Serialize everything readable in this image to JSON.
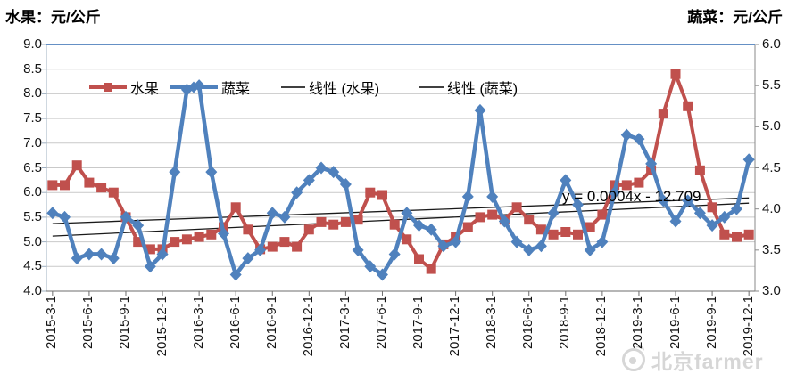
{
  "titles": {
    "left": "水果：元/公斤",
    "right": "蔬菜：元/公斤"
  },
  "legend": {
    "items": [
      {
        "label": "水果",
        "marker": "square-on-line",
        "color": "#C0504D"
      },
      {
        "label": "蔬菜",
        "marker": "diamond-on-line",
        "color": "#4F81BD"
      },
      {
        "label": "线性 (水果)",
        "marker": "line",
        "color": "#000000"
      },
      {
        "label": "线性 (蔬菜)",
        "marker": "line",
        "color": "#000000"
      }
    ]
  },
  "annotation": {
    "text": "y = 0.0004x - 12.709"
  },
  "watermark": {
    "icon": "weibo-eye-icon",
    "text": "北京farmer"
  },
  "chart_data": {
    "type": "line",
    "title": "",
    "xlabel": "",
    "left_axis": {
      "title": "水果：元/公斤",
      "min": 4.0,
      "max": 9.0,
      "step": 0.5,
      "labels": [
        "9.0",
        "8.5",
        "8.0",
        "7.5",
        "7.0",
        "6.5",
        "6.0",
        "5.5",
        "5.0",
        "4.5",
        "4.0"
      ]
    },
    "right_axis": {
      "title": "蔬菜：元/公斤",
      "min": 3.0,
      "max": 6.0,
      "step": 0.5,
      "labels": [
        "6.0",
        "5.5",
        "5.0",
        "4.5",
        "4.0",
        "3.5",
        "3.0"
      ]
    },
    "grid": true,
    "legend_position": "top-center",
    "x": [
      "2015-3-1",
      "2015-4-1",
      "2015-5-1",
      "2015-6-1",
      "2015-7-1",
      "2015-8-1",
      "2015-9-1",
      "2015-10-1",
      "2015-11-1",
      "2015-12-1",
      "2016-1-1",
      "2016-2-1",
      "2016-3-1",
      "2016-4-1",
      "2016-5-1",
      "2016-6-1",
      "2016-7-1",
      "2016-8-1",
      "2016-9-1",
      "2016-10-1",
      "2016-11-1",
      "2016-12-1",
      "2017-1-1",
      "2017-2-1",
      "2017-3-1",
      "2017-4-1",
      "2017-5-1",
      "2017-6-1",
      "2017-7-1",
      "2017-8-1",
      "2017-9-1",
      "2017-10-1",
      "2017-11-1",
      "2017-12-1",
      "2018-1-1",
      "2018-2-1",
      "2018-3-1",
      "2018-4-1",
      "2018-5-1",
      "2018-6-1",
      "2018-7-1",
      "2018-8-1",
      "2018-9-1",
      "2018-10-1",
      "2018-11-1",
      "2018-12-1",
      "2019-1-1",
      "2019-2-1",
      "2019-3-1",
      "2019-4-1",
      "2019-5-1",
      "2019-6-1",
      "2019-7-1",
      "2019-8-1",
      "2019-9-1",
      "2019-10-1",
      "2019-11-1",
      "2019-12-1"
    ],
    "x_tick_labels": [
      "2015-3-1",
      "2015-6-1",
      "2015-9-1",
      "2015-12-1",
      "2016-3-1",
      "2016-6-1",
      "2016-9-1",
      "2016-12-1",
      "2017-3-1",
      "2017-6-1",
      "2017-9-1",
      "2017-12-1",
      "2018-3-1",
      "2018-6-1",
      "2018-9-1",
      "2018-12-1",
      "2019-3-1",
      "2019-6-1",
      "2019-9-1",
      "2019-12-1"
    ],
    "series": [
      {
        "name": "水果",
        "axis": "left",
        "color": "#C0504D",
        "marker": "square",
        "values": [
          6.15,
          6.15,
          6.55,
          6.2,
          6.1,
          6.0,
          5.5,
          5.0,
          4.85,
          4.85,
          5.0,
          5.05,
          5.1,
          5.15,
          5.3,
          5.7,
          5.25,
          4.85,
          4.9,
          5.0,
          4.9,
          5.25,
          5.4,
          5.35,
          5.4,
          5.45,
          6.0,
          5.95,
          5.35,
          5.05,
          4.65,
          4.45,
          4.95,
          5.1,
          5.3,
          5.5,
          5.55,
          5.45,
          5.7,
          5.45,
          5.25,
          5.15,
          5.2,
          5.15,
          5.3,
          5.55,
          6.15,
          6.15,
          6.2,
          6.45,
          7.6,
          8.4,
          7.75,
          6.45,
          5.7,
          5.15,
          5.1,
          5.15
        ]
      },
      {
        "name": "蔬菜",
        "axis": "right",
        "color": "#4F81BD",
        "marker": "diamond",
        "values": [
          3.95,
          3.9,
          3.4,
          3.45,
          3.45,
          3.4,
          3.9,
          3.8,
          3.3,
          3.45,
          4.45,
          5.45,
          5.5,
          4.45,
          3.7,
          3.2,
          3.4,
          3.5,
          3.95,
          3.9,
          4.2,
          4.35,
          4.5,
          4.45,
          4.3,
          3.5,
          3.3,
          3.2,
          3.45,
          3.95,
          3.8,
          3.75,
          3.55,
          3.6,
          4.15,
          5.2,
          4.15,
          3.85,
          3.6,
          3.5,
          3.55,
          3.95,
          4.35,
          4.05,
          3.5,
          3.6,
          4.2,
          4.9,
          4.85,
          4.55,
          4.1,
          3.85,
          4.1,
          3.95,
          3.8,
          3.9,
          4.0,
          4.6
        ]
      }
    ],
    "trendlines": [
      {
        "name": "线性 (水果)",
        "axis": "left",
        "start": 5.37,
        "end": 5.89,
        "color": "#1a1a1a"
      },
      {
        "name": "线性 (蔬菜)",
        "axis": "right",
        "start": 3.67,
        "end": 4.07,
        "color": "#1a1a1a"
      }
    ]
  }
}
